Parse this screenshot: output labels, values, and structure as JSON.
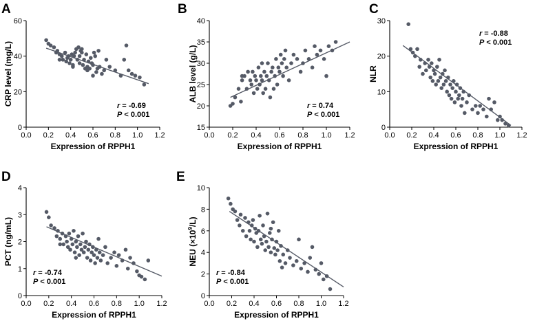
{
  "chart_data": [
    {
      "type": "scatter",
      "panel": "A",
      "xlabel": "Expression of RPPH1",
      "ylabel": "CRP level (mg/L)",
      "xlim": [
        0.0,
        1.2
      ],
      "ylim": [
        0,
        60
      ],
      "xticks": [
        "0.0",
        "0.2",
        "0.4",
        "0.6",
        "0.8",
        "1.0",
        "1.2"
      ],
      "yticks": [
        "0",
        "20",
        "40",
        "60"
      ],
      "fit_line": {
        "x": [
          0.18,
          1.1
        ],
        "y": [
          44.5,
          24.5
        ]
      },
      "annotation": {
        "r_label": "r",
        "r_value": "= -0.69",
        "p_label": "P",
        "p_value": "< 0.001",
        "placement": "bottom-right"
      },
      "x": [
        0.18,
        0.2,
        0.22,
        0.25,
        0.27,
        0.28,
        0.3,
        0.32,
        0.33,
        0.35,
        0.36,
        0.37,
        0.38,
        0.39,
        0.4,
        0.41,
        0.42,
        0.43,
        0.44,
        0.45,
        0.46,
        0.47,
        0.48,
        0.48,
        0.49,
        0.5,
        0.51,
        0.52,
        0.53,
        0.54,
        0.55,
        0.55,
        0.56,
        0.57,
        0.58,
        0.59,
        0.6,
        0.61,
        0.62,
        0.63,
        0.64,
        0.65,
        0.66,
        0.68,
        0.7,
        0.72,
        0.75,
        0.8,
        0.85,
        0.88,
        0.9,
        0.92,
        0.95,
        0.98,
        1.02,
        1.06,
        0.3,
        0.42,
        0.5,
        0.6
      ],
      "y": [
        49,
        47,
        46,
        45,
        42,
        43,
        41,
        40,
        38,
        42,
        37,
        39,
        40,
        36,
        38,
        41,
        35,
        40,
        42,
        44,
        38,
        45,
        40,
        36,
        43,
        42,
        35,
        38,
        33,
        41,
        34,
        32,
        37,
        33,
        39,
        36,
        35,
        42,
        40,
        31,
        33,
        43,
        34,
        30,
        32,
        38,
        34,
        32,
        29,
        38,
        46,
        32,
        30,
        29,
        28,
        24,
        38,
        34,
        44,
        29
      ]
    },
    {
      "type": "scatter",
      "panel": "B",
      "xlabel": "Expression of RPPH1",
      "ylabel": "ALB level (g/L)",
      "xlim": [
        0.0,
        1.2
      ],
      "ylim": [
        15,
        40
      ],
      "xticks": [
        "0.0",
        "0.2",
        "0.4",
        "0.6",
        "0.8",
        "1.0",
        "1.2"
      ],
      "yticks": [
        "15",
        "20",
        "25",
        "30",
        "35",
        "40"
      ],
      "fit_line": {
        "x": [
          0.18,
          1.2
        ],
        "y": [
          22.0,
          35.0
        ]
      },
      "annotation": {
        "r_label": "r",
        "r_value": "= 0.74",
        "p_label": "P",
        "p_value": "< 0.001",
        "placement": "bottom-right"
      },
      "x": [
        0.18,
        0.2,
        0.22,
        0.25,
        0.27,
        0.28,
        0.3,
        0.32,
        0.33,
        0.35,
        0.36,
        0.37,
        0.38,
        0.39,
        0.4,
        0.41,
        0.42,
        0.43,
        0.44,
        0.45,
        0.46,
        0.47,
        0.48,
        0.49,
        0.5,
        0.51,
        0.52,
        0.53,
        0.54,
        0.55,
        0.56,
        0.57,
        0.58,
        0.59,
        0.6,
        0.61,
        0.62,
        0.63,
        0.64,
        0.65,
        0.66,
        0.68,
        0.7,
        0.72,
        0.75,
        0.78,
        0.8,
        0.82,
        0.85,
        0.88,
        0.9,
        0.92,
        0.95,
        0.98,
        1.0,
        1.02,
        1.05,
        1.08,
        0.28,
        0.45
      ],
      "y": [
        20,
        20.5,
        22,
        24,
        21,
        26,
        27,
        24,
        28,
        26,
        25,
        28,
        23,
        27,
        26,
        24,
        29,
        25,
        27,
        26,
        23,
        28,
        24,
        27,
        30,
        26,
        22,
        28,
        29,
        24,
        27,
        31,
        25,
        29,
        28,
        32,
        30,
        27,
        31,
        33,
        29,
        26,
        30,
        32,
        31,
        28,
        30,
        33,
        31,
        29,
        34,
        32,
        33,
        31,
        27,
        34,
        33,
        35,
        27,
        30
      ]
    },
    {
      "type": "scatter",
      "panel": "C",
      "xlabel": "Expression of RPPH1",
      "ylabel": "NLR",
      "xlim": [
        0.0,
        1.2
      ],
      "ylim": [
        0,
        30
      ],
      "xticks": [
        "0.0",
        "0.2",
        "0.4",
        "0.6",
        "0.8",
        "1.0",
        "1.2"
      ],
      "yticks": [
        "0",
        "10",
        "20",
        "30"
      ],
      "fit_line": {
        "x": [
          0.12,
          1.1
        ],
        "y": [
          23.0,
          0.5
        ]
      },
      "annotation": {
        "r_label": "r",
        "r_value": "= -0.88",
        "p_label": "P",
        "p_value": "< 0.001",
        "placement": "top-right"
      },
      "x": [
        0.17,
        0.19,
        0.21,
        0.23,
        0.25,
        0.27,
        0.28,
        0.3,
        0.32,
        0.33,
        0.35,
        0.36,
        0.37,
        0.38,
        0.39,
        0.4,
        0.41,
        0.42,
        0.43,
        0.44,
        0.45,
        0.46,
        0.47,
        0.48,
        0.49,
        0.5,
        0.51,
        0.52,
        0.53,
        0.54,
        0.55,
        0.56,
        0.57,
        0.58,
        0.59,
        0.6,
        0.61,
        0.62,
        0.63,
        0.64,
        0.65,
        0.66,
        0.67,
        0.68,
        0.7,
        0.72,
        0.75,
        0.78,
        0.8,
        0.82,
        0.85,
        0.88,
        0.9,
        0.92,
        0.95,
        0.98,
        1.0,
        1.02,
        1.05,
        1.08
      ],
      "y": [
        29,
        22,
        21,
        20,
        22,
        17,
        19,
        15,
        18,
        16,
        19,
        17,
        14,
        18,
        13,
        16,
        15,
        12,
        17,
        13,
        19,
        14,
        11,
        15,
        12,
        16,
        13,
        10,
        14,
        9,
        12,
        8,
        11,
        13,
        7,
        10,
        12,
        8,
        9,
        11,
        6,
        8,
        10,
        4,
        7,
        9,
        5,
        6,
        4,
        6,
        5,
        3,
        8,
        5,
        7,
        2,
        3,
        2,
        1,
        0.5
      ]
    },
    {
      "type": "scatter",
      "panel": "D",
      "xlabel": "Expression of RPPH1",
      "ylabel": "PCT (ng/mL)",
      "xlim": [
        0.0,
        1.2
      ],
      "ylim": [
        0,
        4
      ],
      "xticks": [
        "0.0",
        "0.2",
        "0.4",
        "0.6",
        "0.8",
        "1.0",
        "1.2"
      ],
      "yticks": [
        "0",
        "1",
        "2",
        "3",
        "4"
      ],
      "fit_line": {
        "x": [
          0.18,
          1.2
        ],
        "y": [
          2.55,
          0.72
        ]
      },
      "annotation": {
        "r_label": "r",
        "r_value": "= -0.74",
        "p_label": "P",
        "p_value": "< 0.001",
        "placement": "bottom-left"
      },
      "x": [
        0.18,
        0.2,
        0.22,
        0.25,
        0.27,
        0.28,
        0.3,
        0.32,
        0.33,
        0.35,
        0.36,
        0.37,
        0.38,
        0.39,
        0.4,
        0.41,
        0.42,
        0.43,
        0.44,
        0.45,
        0.46,
        0.47,
        0.48,
        0.49,
        0.5,
        0.51,
        0.52,
        0.53,
        0.54,
        0.55,
        0.56,
        0.57,
        0.58,
        0.59,
        0.6,
        0.61,
        0.62,
        0.63,
        0.64,
        0.65,
        0.66,
        0.68,
        0.7,
        0.72,
        0.75,
        0.78,
        0.8,
        0.82,
        0.85,
        0.88,
        0.9,
        0.92,
        0.95,
        0.98,
        1.0,
        1.02,
        1.05,
        1.08,
        0.3,
        0.44
      ],
      "y": [
        3.1,
        2.9,
        2.6,
        2.5,
        2.2,
        2.4,
        2.1,
        2.3,
        1.9,
        2.2,
        2.0,
        1.8,
        2.3,
        1.7,
        2.1,
        1.9,
        2.4,
        1.6,
        2.0,
        1.8,
        2.2,
        1.5,
        1.9,
        1.7,
        2.3,
        1.6,
        1.8,
        2.0,
        1.4,
        1.7,
        1.9,
        1.3,
        1.6,
        1.8,
        1.5,
        1.2,
        1.7,
        1.4,
        2.1,
        1.6,
        1.3,
        1.5,
        1.8,
        1.2,
        1.4,
        1.6,
        1.1,
        1.5,
        1.3,
        1.7,
        1.0,
        1.4,
        1.2,
        0.9,
        0.75,
        0.7,
        0.6,
        1.3,
        1.9,
        1.4
      ]
    },
    {
      "type": "scatter",
      "panel": "E",
      "xlabel": "Expression of RPPH1",
      "ylabel_prefix": "NEU (×10",
      "ylabel_sup": "9",
      "ylabel_suffix": "/L)",
      "xlim": [
        0.0,
        1.2
      ],
      "ylim": [
        0,
        10
      ],
      "xticks": [
        "0.0",
        "0.2",
        "0.4",
        "0.6",
        "0.8",
        "1.0",
        "1.2"
      ],
      "yticks": [
        "0",
        "2",
        "4",
        "6",
        "8",
        "10"
      ],
      "fit_line": {
        "x": [
          0.18,
          1.2
        ],
        "y": [
          7.8,
          0.8
        ]
      },
      "annotation": {
        "r_label": "r",
        "r_value": "= -0.84",
        "p_label": "P",
        "p_value": "< 0.001",
        "placement": "bottom-left"
      },
      "x": [
        0.17,
        0.19,
        0.21,
        0.23,
        0.25,
        0.27,
        0.28,
        0.3,
        0.32,
        0.33,
        0.35,
        0.36,
        0.37,
        0.38,
        0.39,
        0.4,
        0.41,
        0.42,
        0.43,
        0.44,
        0.45,
        0.46,
        0.47,
        0.48,
        0.49,
        0.5,
        0.51,
        0.52,
        0.53,
        0.54,
        0.55,
        0.56,
        0.57,
        0.58,
        0.59,
        0.6,
        0.61,
        0.62,
        0.63,
        0.64,
        0.65,
        0.66,
        0.68,
        0.7,
        0.72,
        0.75,
        0.78,
        0.8,
        0.82,
        0.85,
        0.88,
        0.9,
        0.92,
        0.95,
        0.98,
        1.0,
        1.02,
        1.05,
        1.08,
        0.55
      ],
      "y": [
        9.0,
        8.5,
        8.0,
        7.8,
        7.0,
        6.5,
        7.5,
        6.0,
        7.2,
        5.5,
        6.8,
        6.0,
        5.2,
        6.5,
        7.0,
        5.0,
        6.2,
        5.8,
        4.5,
        6.0,
        7.4,
        5.2,
        4.8,
        6.5,
        5.5,
        4.2,
        5.0,
        7.6,
        4.5,
        5.8,
        4.0,
        5.2,
        6.8,
        4.4,
        3.8,
        5.0,
        4.2,
        6.0,
        3.2,
        4.6,
        2.6,
        3.8,
        3.0,
        4.2,
        3.5,
        2.8,
        3.2,
        5.2,
        2.5,
        3.0,
        2.2,
        3.5,
        4.5,
        2.4,
        2.0,
        3.0,
        1.5,
        1.8,
        0.6,
        6.2
      ]
    }
  ]
}
